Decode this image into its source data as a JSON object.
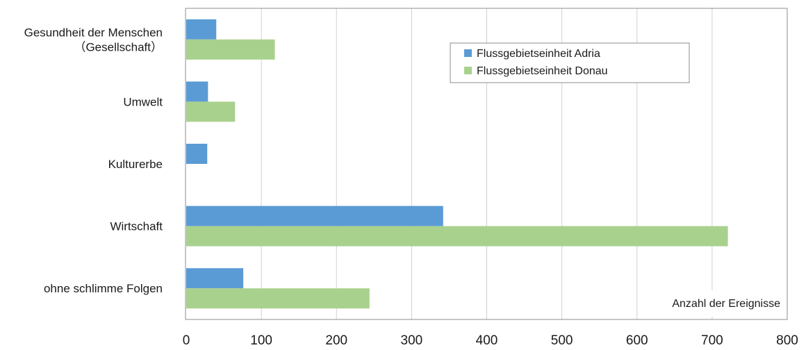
{
  "chart_data": {
    "type": "bar",
    "orientation": "horizontal",
    "categories": [
      [
        "Gesundheit der Menschen",
        "（Gesellschaft）"
      ],
      [
        "Umwelt"
      ],
      [
        "Kulturerbe"
      ],
      [
        "Wirtschaft"
      ],
      [
        "ohne schlimme Folgen"
      ]
    ],
    "series": [
      {
        "name": "Flussgebietseinheit Adria",
        "color": "#5b9bd5",
        "values": [
          40,
          29,
          28,
          342,
          76
        ]
      },
      {
        "name": "Flussgebietseinheit Donau",
        "color": "#a9d18e",
        "values": [
          118,
          65,
          null,
          721,
          244
        ]
      }
    ],
    "xlim": [
      0,
      800
    ],
    "xticks": [
      0,
      100,
      200,
      300,
      400,
      500,
      600,
      700,
      800
    ],
    "xlabel": "Anzahl der Ereignisse",
    "title": "",
    "grid": "vertical",
    "legend_position": "top-right"
  }
}
